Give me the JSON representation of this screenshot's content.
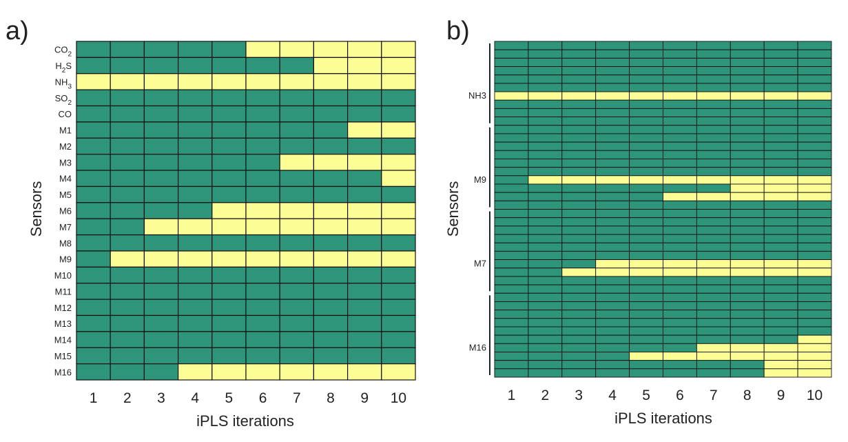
{
  "colors": {
    "selected": "#fdfd96",
    "not_selected": "#2e957a",
    "grid": "#111111",
    "background": "#ffffff"
  },
  "chart_data": [
    {
      "panel_label": "a)",
      "type": "heatmap",
      "xlabel": "iPLS iterations",
      "ylabel": "Sensors",
      "x": [
        "1",
        "2",
        "3",
        "4",
        "5",
        "6",
        "7",
        "8",
        "9",
        "10"
      ],
      "y": [
        {
          "main": "CO",
          "sub": "2"
        },
        {
          "main": "H",
          "sub": "2",
          "rest": "S"
        },
        {
          "main": "NH",
          "sub": "3"
        },
        {
          "main": "SO",
          "sub": "2"
        },
        {
          "main": "CO"
        },
        {
          "main": "M1"
        },
        {
          "main": "M2"
        },
        {
          "main": "M3"
        },
        {
          "main": "M4"
        },
        {
          "main": "M5"
        },
        {
          "main": "M6"
        },
        {
          "main": "M7"
        },
        {
          "main": "M8"
        },
        {
          "main": "M9"
        },
        {
          "main": "M10"
        },
        {
          "main": "M11"
        },
        {
          "main": "M12"
        },
        {
          "main": "M13"
        },
        {
          "main": "M14"
        },
        {
          "main": "M15"
        },
        {
          "main": "M16"
        }
      ],
      "values": [
        [
          0,
          0,
          0,
          0,
          0,
          1,
          1,
          1,
          1,
          1
        ],
        [
          0,
          0,
          0,
          0,
          0,
          0,
          0,
          1,
          1,
          1
        ],
        [
          1,
          1,
          1,
          1,
          1,
          1,
          1,
          1,
          1,
          1
        ],
        [
          0,
          0,
          0,
          0,
          0,
          0,
          0,
          0,
          0,
          0
        ],
        [
          0,
          0,
          0,
          0,
          0,
          0,
          0,
          0,
          0,
          0
        ],
        [
          0,
          0,
          0,
          0,
          0,
          0,
          0,
          0,
          1,
          1
        ],
        [
          0,
          0,
          0,
          0,
          0,
          0,
          0,
          0,
          0,
          0
        ],
        [
          0,
          0,
          0,
          0,
          0,
          0,
          1,
          1,
          1,
          1
        ],
        [
          0,
          0,
          0,
          0,
          0,
          0,
          0,
          0,
          0,
          1
        ],
        [
          0,
          0,
          0,
          0,
          0,
          0,
          0,
          0,
          0,
          0
        ],
        [
          0,
          0,
          0,
          0,
          1,
          1,
          1,
          1,
          1,
          1
        ],
        [
          0,
          0,
          1,
          1,
          1,
          1,
          1,
          1,
          1,
          1
        ],
        [
          0,
          0,
          0,
          0,
          0,
          0,
          0,
          0,
          0,
          0
        ],
        [
          0,
          1,
          1,
          1,
          1,
          1,
          1,
          1,
          1,
          1
        ],
        [
          0,
          0,
          0,
          0,
          0,
          0,
          0,
          0,
          0,
          0
        ],
        [
          0,
          0,
          0,
          0,
          0,
          0,
          0,
          0,
          0,
          0
        ],
        [
          0,
          0,
          0,
          0,
          0,
          0,
          0,
          0,
          0,
          0
        ],
        [
          0,
          0,
          0,
          0,
          0,
          0,
          0,
          0,
          0,
          0
        ],
        [
          0,
          0,
          0,
          0,
          0,
          0,
          0,
          0,
          0,
          0
        ],
        [
          0,
          0,
          0,
          0,
          0,
          0,
          0,
          0,
          0,
          0
        ],
        [
          0,
          0,
          0,
          1,
          1,
          1,
          1,
          1,
          1,
          1
        ]
      ]
    },
    {
      "panel_label": "b)",
      "type": "heatmap",
      "xlabel": "iPLS iterations",
      "ylabel": "Sensors",
      "x": [
        "1",
        "2",
        "3",
        "4",
        "5",
        "6",
        "7",
        "8",
        "9",
        "10"
      ],
      "rows_per_group": 10,
      "groups": [
        {
          "label": "NH3",
          "values": [
            [
              0,
              0,
              0,
              0,
              0,
              0,
              0,
              0,
              0,
              0
            ],
            [
              0,
              0,
              0,
              0,
              0,
              0,
              0,
              0,
              0,
              0
            ],
            [
              0,
              0,
              0,
              0,
              0,
              0,
              0,
              0,
              0,
              0
            ],
            [
              0,
              0,
              0,
              0,
              0,
              0,
              0,
              0,
              0,
              0
            ],
            [
              0,
              0,
              0,
              0,
              0,
              0,
              0,
              0,
              0,
              0
            ],
            [
              0,
              0,
              0,
              0,
              0,
              0,
              0,
              0,
              0,
              0
            ],
            [
              1,
              1,
              1,
              1,
              1,
              1,
              1,
              1,
              1,
              1
            ],
            [
              0,
              0,
              0,
              0,
              0,
              0,
              0,
              0,
              0,
              0
            ],
            [
              0,
              0,
              0,
              0,
              0,
              0,
              0,
              0,
              0,
              0
            ],
            [
              0,
              0,
              0,
              0,
              0,
              0,
              0,
              0,
              0,
              0
            ]
          ]
        },
        {
          "label": "M9",
          "values": [
            [
              0,
              0,
              0,
              0,
              0,
              0,
              0,
              0,
              0,
              0
            ],
            [
              0,
              0,
              0,
              0,
              0,
              0,
              0,
              0,
              0,
              0
            ],
            [
              0,
              0,
              0,
              0,
              0,
              0,
              0,
              0,
              0,
              0
            ],
            [
              0,
              0,
              0,
              0,
              0,
              0,
              0,
              0,
              0,
              0
            ],
            [
              0,
              0,
              0,
              0,
              0,
              0,
              0,
              0,
              0,
              0
            ],
            [
              0,
              0,
              0,
              0,
              0,
              0,
              0,
              0,
              0,
              0
            ],
            [
              0,
              1,
              1,
              1,
              1,
              1,
              1,
              1,
              1,
              1
            ],
            [
              0,
              0,
              0,
              0,
              0,
              0,
              0,
              1,
              1,
              1
            ],
            [
              0,
              0,
              0,
              0,
              0,
              1,
              1,
              1,
              1,
              1
            ],
            [
              0,
              0,
              0,
              0,
              0,
              0,
              0,
              0,
              0,
              0
            ]
          ]
        },
        {
          "label": "M7",
          "values": [
            [
              0,
              0,
              0,
              0,
              0,
              0,
              0,
              0,
              0,
              0
            ],
            [
              0,
              0,
              0,
              0,
              0,
              0,
              0,
              0,
              0,
              0
            ],
            [
              0,
              0,
              0,
              0,
              0,
              0,
              0,
              0,
              0,
              0
            ],
            [
              0,
              0,
              0,
              0,
              0,
              0,
              0,
              0,
              0,
              0
            ],
            [
              0,
              0,
              0,
              0,
              0,
              0,
              0,
              0,
              0,
              0
            ],
            [
              0,
              0,
              0,
              0,
              0,
              0,
              0,
              0,
              0,
              0
            ],
            [
              0,
              0,
              0,
              1,
              1,
              1,
              1,
              1,
              1,
              1
            ],
            [
              0,
              0,
              1,
              1,
              1,
              1,
              1,
              1,
              1,
              1
            ],
            [
              0,
              0,
              0,
              0,
              0,
              0,
              0,
              0,
              0,
              0
            ],
            [
              0,
              0,
              0,
              0,
              0,
              0,
              0,
              0,
              0,
              0
            ]
          ]
        },
        {
          "label": "M16",
          "values": [
            [
              0,
              0,
              0,
              0,
              0,
              0,
              0,
              0,
              0,
              0
            ],
            [
              0,
              0,
              0,
              0,
              0,
              0,
              0,
              0,
              0,
              0
            ],
            [
              0,
              0,
              0,
              0,
              0,
              0,
              0,
              0,
              0,
              0
            ],
            [
              0,
              0,
              0,
              0,
              0,
              0,
              0,
              0,
              0,
              0
            ],
            [
              0,
              0,
              0,
              0,
              0,
              0,
              0,
              0,
              0,
              0
            ],
            [
              0,
              0,
              0,
              0,
              0,
              0,
              0,
              0,
              0,
              1
            ],
            [
              0,
              0,
              0,
              0,
              0,
              0,
              1,
              1,
              1,
              1
            ],
            [
              0,
              0,
              0,
              0,
              1,
              1,
              1,
              1,
              1,
              1
            ],
            [
              0,
              0,
              0,
              0,
              0,
              0,
              0,
              0,
              1,
              1
            ],
            [
              0,
              0,
              0,
              0,
              0,
              0,
              0,
              0,
              1,
              1
            ]
          ]
        }
      ]
    }
  ]
}
